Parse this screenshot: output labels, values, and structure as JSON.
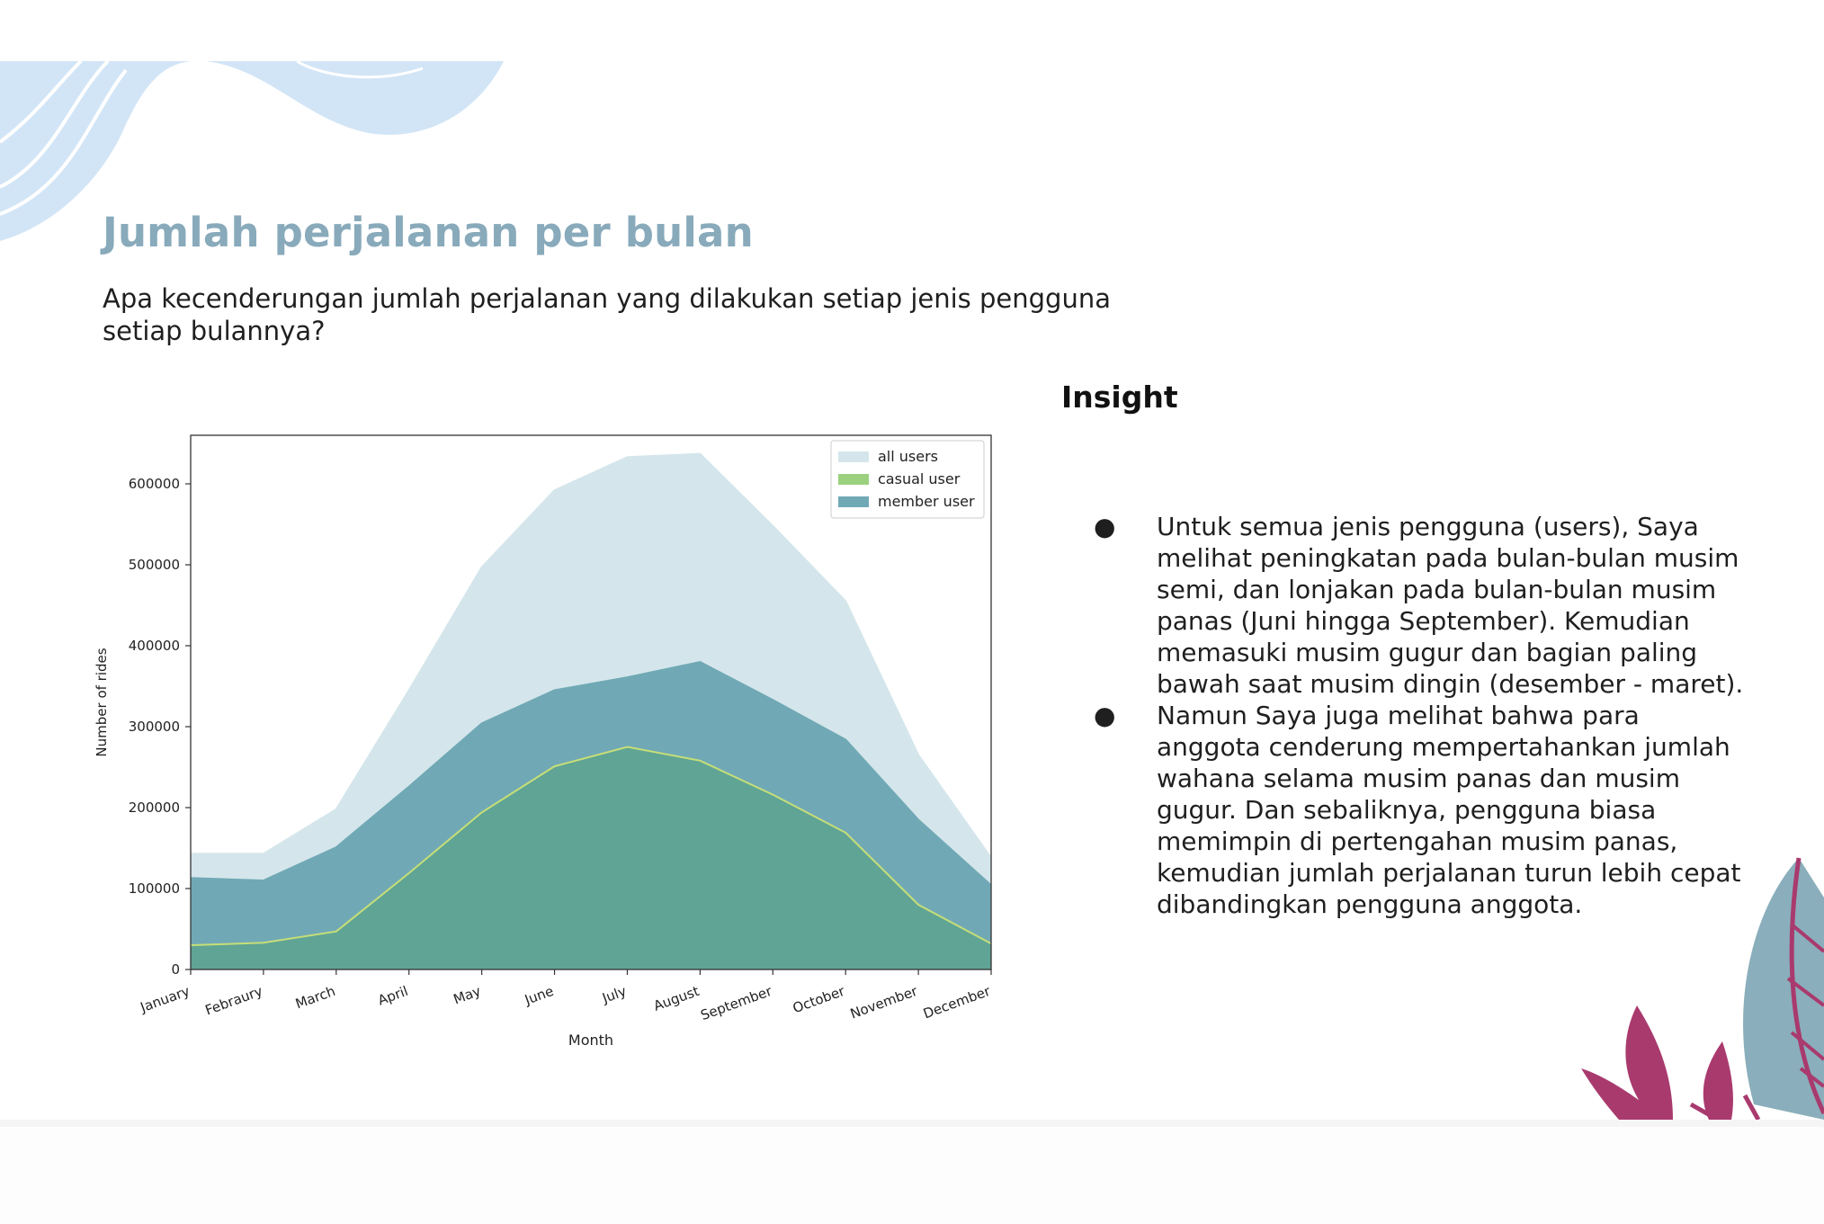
{
  "slide": {
    "title": "Jumlah perjalanan per bulan",
    "question": "Apa kecenderungan jumlah perjalanan yang dilakukan setiap jenis pengguna setiap bulannya?"
  },
  "insight": {
    "title": "Insight",
    "bullet_symbol": "●",
    "items": [
      "Untuk semua jenis pengguna (users), Saya melihat peningkatan pada bulan-bulan musim semi, dan lonjakan pada bulan-bulan musim panas (Juni hingga September). Kemudian memasuki musim gugur dan bagian paling bawah saat musim dingin (desember - maret).",
      "Namun Saya juga melihat bahwa para anggota cenderung mempertahankan jumlah wahana selama musim panas dan musim gugur. Dan sebaliknya, pengguna biasa memimpin di pertengahan musim panas, kemudian jumlah perjalanan turun lebih cepat dibandingkan pengguna anggota."
    ]
  },
  "chart_data": {
    "type": "area",
    "title": "",
    "xlabel": "Month",
    "ylabel": "Number of rides",
    "categories": [
      "January",
      "Febraury",
      "March",
      "April",
      "May",
      "June",
      "July",
      "August",
      "September",
      "October",
      "November",
      "December"
    ],
    "ylim": [
      0,
      660000
    ],
    "yticks": [
      0,
      100000,
      200000,
      300000,
      400000,
      500000,
      600000
    ],
    "grid": false,
    "legend_position": "top-right",
    "series": [
      {
        "name": "all users",
        "color": "#d4e6eb",
        "values": [
          143000,
          143000,
          198000,
          345000,
          497000,
          592000,
          633000,
          637000,
          548000,
          455000,
          265000,
          138000
        ]
      },
      {
        "name": "member user",
        "color": "#70a9b5",
        "values": [
          113000,
          110000,
          151000,
          226000,
          304000,
          345000,
          361000,
          380000,
          333000,
          284000,
          185000,
          104000
        ]
      },
      {
        "name": "casual user",
        "color": "#5fa494",
        "legend_color": "#9bd17e",
        "line_color": "#c6de78",
        "values": [
          30000,
          33000,
          47000,
          119000,
          194000,
          251000,
          275000,
          258000,
          216000,
          169000,
          80000,
          32000
        ]
      }
    ]
  }
}
